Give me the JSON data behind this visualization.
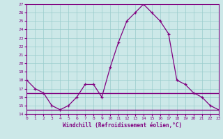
{
  "xlabel": "Windchill (Refroidissement éolien,°C)",
  "x": [
    0,
    1,
    2,
    3,
    4,
    5,
    6,
    7,
    8,
    9,
    10,
    11,
    12,
    13,
    14,
    15,
    16,
    17,
    18,
    19,
    20,
    21,
    22,
    23
  ],
  "y_main": [
    18,
    17,
    16.5,
    15,
    14.5,
    15,
    16,
    17.5,
    17.5,
    16,
    19.5,
    22.5,
    25,
    26,
    27,
    26,
    25,
    23.5,
    18,
    17.5,
    16.5,
    16,
    15,
    14.5
  ],
  "y_upper_flat": [
    16.5,
    16.5,
    16.5,
    16.5,
    16.5,
    16.5,
    16.5,
    16.5,
    16.5,
    16.5,
    16.5,
    16.5,
    16.5,
    16.5,
    16.5,
    16.5,
    16.5,
    16.5,
    16.5,
    16.5,
    16.5,
    16.5,
    16.5,
    16.5
  ],
  "y_lower_flat": [
    14.5,
    14.5,
    14.5,
    14.5,
    14.5,
    14.5,
    14.5,
    14.5,
    14.5,
    14.5,
    14.5,
    14.5,
    14.5,
    14.5,
    14.5,
    14.5,
    14.5,
    14.5,
    14.5,
    14.5,
    14.5,
    14.5,
    14.5,
    14.5
  ],
  "ylim": [
    14,
    27
  ],
  "xlim": [
    0,
    23
  ],
  "yticks": [
    14,
    15,
    16,
    17,
    18,
    19,
    20,
    21,
    22,
    23,
    24,
    25,
    26,
    27
  ],
  "xticks": [
    0,
    1,
    2,
    3,
    4,
    5,
    6,
    7,
    8,
    9,
    10,
    11,
    12,
    13,
    14,
    15,
    16,
    17,
    18,
    19,
    20,
    21,
    22,
    23
  ],
  "line_color": "#800080",
  "bg_color": "#cce8e8",
  "grid_color": "#99cccc",
  "figsize": [
    3.2,
    2.0
  ],
  "dpi": 100
}
